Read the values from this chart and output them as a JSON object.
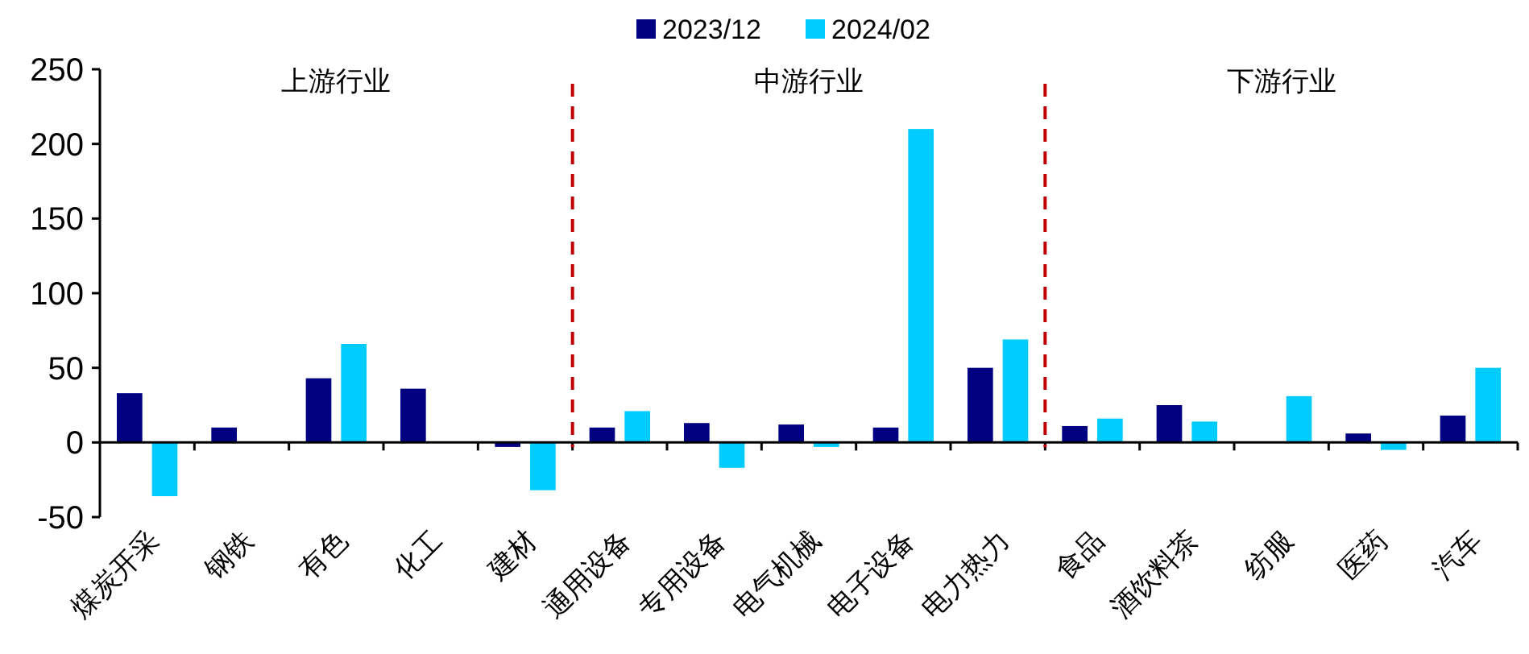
{
  "chart_data": {
    "type": "bar",
    "categories": [
      "煤炭开采",
      "钢铁",
      "有色",
      "化工",
      "建材",
      "通用设备",
      "专用设备",
      "电气机械",
      "电子设备",
      "电力热力",
      "食品",
      "酒饮料茶",
      "纺服",
      "医药",
      "汽车"
    ],
    "series": [
      {
        "name": "2023/12",
        "color": "#000080",
        "values": [
          33,
          10,
          43,
          36,
          -3,
          10,
          13,
          12,
          10,
          50,
          11,
          25,
          null,
          6,
          18
        ]
      },
      {
        "name": "2024/02",
        "color": "#00ccff",
        "values": [
          -36,
          null,
          66,
          null,
          -32,
          21,
          -17,
          -3,
          210,
          69,
          16,
          14,
          31,
          -5,
          50
        ]
      }
    ],
    "ylim": [
      -50,
      250
    ],
    "yticks": [
      -50,
      0,
      50,
      100,
      150,
      200,
      250
    ],
    "annotations": [
      "上游行业",
      "中游行业",
      "下游行业"
    ],
    "legend": "top"
  }
}
